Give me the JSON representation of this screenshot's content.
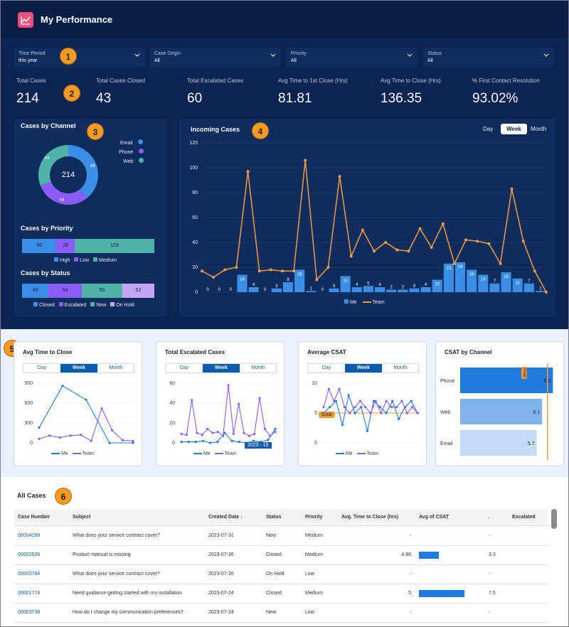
{
  "app": {
    "title": "My Performance"
  },
  "filters": [
    {
      "label": "Time Period",
      "value": "this year"
    },
    {
      "label": "Case Origin",
      "value": "All"
    },
    {
      "label": "Priority",
      "value": "All"
    },
    {
      "label": "Status",
      "value": "All"
    }
  ],
  "metrics": [
    {
      "label": "Total Cases",
      "value": "214"
    },
    {
      "label": "Total Cases Closed",
      "value": "43"
    },
    {
      "label": "Total Escalated Cases",
      "value": "60"
    },
    {
      "label": "Avg Time to 1st Close (Hrs)",
      "value": "81.81"
    },
    {
      "label": "Avg Time to Close (Hrs)",
      "value": "136.35"
    },
    {
      "label": "% First Contact Resolution",
      "value": "93.02%"
    }
  ],
  "badges": [
    "1",
    "2",
    "3",
    "4",
    "5",
    "6"
  ],
  "cases_by_channel": {
    "title": "Cases by Channel",
    "center": "214",
    "slice_labels": [
      "84",
      "64",
      "66"
    ],
    "legend": [
      "Email",
      "Phone",
      "Web"
    ],
    "colors": [
      "#3a8ee6",
      "#8b5cf6",
      "#4fb3a8"
    ]
  },
  "cases_by_priority": {
    "title": "Cases by Priority",
    "values": [
      "56",
      "29",
      "129"
    ],
    "legend": [
      "High",
      "Low",
      "Medium"
    ],
    "colors": [
      "#3a8ee6",
      "#8b5cf6",
      "#4fb3a8"
    ]
  },
  "cases_by_status": {
    "title": "Cases by Status",
    "values": [
      "43",
      "54",
      "65",
      "52"
    ],
    "legend": [
      "Closed",
      "Escalated",
      "New",
      "On Hold"
    ],
    "colors": [
      "#3a8ee6",
      "#8b5cf6",
      "#4fb3a8",
      "#c4a6f5"
    ]
  },
  "incoming": {
    "title": "Incoming Cases",
    "toggles": [
      "Day",
      "Week",
      "Month"
    ],
    "legend": [
      "Me",
      "Team"
    ],
    "colors": {
      "me": "#3a8ee6",
      "team": "#f39c3b"
    }
  },
  "cards": [
    {
      "title": "Avg Time to Close",
      "toggles": [
        "Day",
        "Week",
        "Month"
      ],
      "legend": [
        "Me",
        "Team"
      ]
    },
    {
      "title": "Total Escalated Cases",
      "toggles": [
        "Day",
        "Week",
        "Month"
      ],
      "legend": [
        "Me",
        "Team"
      ],
      "tooltip": "2023 - 15"
    },
    {
      "title": "Average CSAT",
      "toggles": [
        "Day",
        "Week",
        "Month"
      ],
      "legend": [
        "Me",
        "Team"
      ],
      "goal": "Goal"
    },
    {
      "title": "CSAT by Channel",
      "goal": "Goal"
    }
  ],
  "chart_data": [
    {
      "type": "pie",
      "title": "Cases by Channel",
      "categories": [
        "Email",
        "Phone",
        "Web"
      ],
      "values": [
        84,
        64,
        66
      ]
    },
    {
      "type": "bar",
      "title": "Cases by Priority",
      "categories": [
        "High",
        "Low",
        "Medium"
      ],
      "values": [
        56,
        29,
        129
      ]
    },
    {
      "type": "bar",
      "title": "Cases by Status",
      "categories": [
        "Closed",
        "Escalated",
        "New",
        "On Hold"
      ],
      "values": [
        43,
        54,
        65,
        52
      ]
    },
    {
      "type": "bar",
      "title": "Incoming Cases",
      "ylim": [
        0,
        120
      ],
      "yticks": [
        0,
        20,
        40,
        60,
        80,
        100,
        120
      ],
      "series": [
        {
          "name": "Me",
          "type": "bar",
          "values": [
            0,
            0,
            0,
            14,
            4,
            0,
            3,
            8,
            18,
            1,
            0,
            3,
            13,
            4,
            5,
            4,
            2,
            2,
            3,
            4,
            10,
            23,
            24,
            18,
            14,
            7,
            16,
            11,
            7,
            1
          ]
        },
        {
          "name": "Team",
          "type": "line",
          "values": [
            17,
            12,
            18,
            20,
            97,
            17,
            18,
            17,
            17,
            106,
            10,
            20,
            93,
            29,
            50,
            33,
            40,
            34,
            33,
            51,
            36,
            55,
            23,
            42,
            41,
            39,
            23,
            83,
            41,
            17,
            0
          ]
        }
      ]
    },
    {
      "type": "line",
      "title": "Avg Time to Close",
      "ylim": [
        0,
        900
      ],
      "yticks": [
        0,
        300,
        600,
        900
      ],
      "series": [
        {
          "name": "Me",
          "values": [
            230,
            860,
            650,
            0,
            0
          ]
        },
        {
          "name": "Team",
          "values": [
            60,
            110,
            80,
            110,
            120,
            30,
            520,
            190,
            40,
            30
          ]
        }
      ]
    },
    {
      "type": "line",
      "title": "Total Escalated Cases",
      "ylim": [
        0,
        60
      ],
      "yticks": [
        0,
        20,
        40,
        60
      ],
      "series": [
        {
          "name": "Me",
          "values": [
            1,
            1,
            1,
            2,
            0,
            1,
            10,
            2,
            1,
            0,
            2,
            1,
            3,
            14
          ]
        },
        {
          "name": "Team",
          "values": [
            9,
            8,
            43,
            10,
            8,
            14,
            10,
            11,
            7,
            58,
            9,
            39,
            10,
            7,
            9,
            45,
            14,
            7,
            11
          ]
        }
      ]
    },
    {
      "type": "line",
      "title": "Average CSAT",
      "ylim": [
        0,
        10
      ],
      "yticks": [
        0,
        5,
        10
      ],
      "goal": 5,
      "series": [
        {
          "name": "Me",
          "values": [
            5,
            6,
            7,
            3,
            8,
            5,
            6,
            2,
            7,
            6,
            5,
            7,
            4,
            6,
            7,
            5
          ]
        },
        {
          "name": "Team",
          "values": [
            6,
            9,
            7,
            9,
            6,
            5,
            6,
            7,
            6,
            5,
            7,
            5,
            7,
            6,
            6,
            7,
            5,
            6,
            5
          ]
        }
      ]
    },
    {
      "type": "bar",
      "title": "CSAT by Channel",
      "categories": [
        "Phone",
        "Web",
        "Email"
      ],
      "values": [
        6.9,
        6.1,
        5.7
      ],
      "goal": 6.5
    }
  ],
  "table": {
    "title": "All Cases",
    "headers": [
      "Case Number",
      "Subject",
      "Created Date",
      "Status",
      "Priority",
      "Avg. Time to Close (hrs)",
      "Avg of CSAT",
      ".",
      "Escalated"
    ],
    "sort_indicator": "↓",
    "rows": [
      {
        "case": "00004289",
        "subject": "What does your service contract cover?",
        "date": "2023-07-31",
        "status": "New",
        "priority": "Medium",
        "time": "-",
        "csat_bar": 0,
        "csat": "-"
      },
      {
        "case": "00002939",
        "subject": "Product manual is missing",
        "date": "2023-07-26",
        "status": "Closed",
        "priority": "Medium",
        "time": "4.86",
        "csat_bar": 0.31,
        "csat": "3.3"
      },
      {
        "case": "00003784",
        "subject": "What does your service contract cover?",
        "date": "2023-07-26",
        "status": "On Hold",
        "priority": "Low",
        "time": "-",
        "csat_bar": 0,
        "csat": "-"
      },
      {
        "case": "00001774",
        "subject": "Need guidance getting started with my installation",
        "date": "2023-07-24",
        "status": "Closed",
        "priority": "Medium",
        "time": "5",
        "csat_bar": 0.71,
        "csat": "7.5"
      },
      {
        "case": "00003738",
        "subject": "How do I change my communication preferences?",
        "date": "2023-07-24",
        "status": "New",
        "priority": "Low",
        "time": "-",
        "csat_bar": 0,
        "csat": "-"
      }
    ]
  }
}
